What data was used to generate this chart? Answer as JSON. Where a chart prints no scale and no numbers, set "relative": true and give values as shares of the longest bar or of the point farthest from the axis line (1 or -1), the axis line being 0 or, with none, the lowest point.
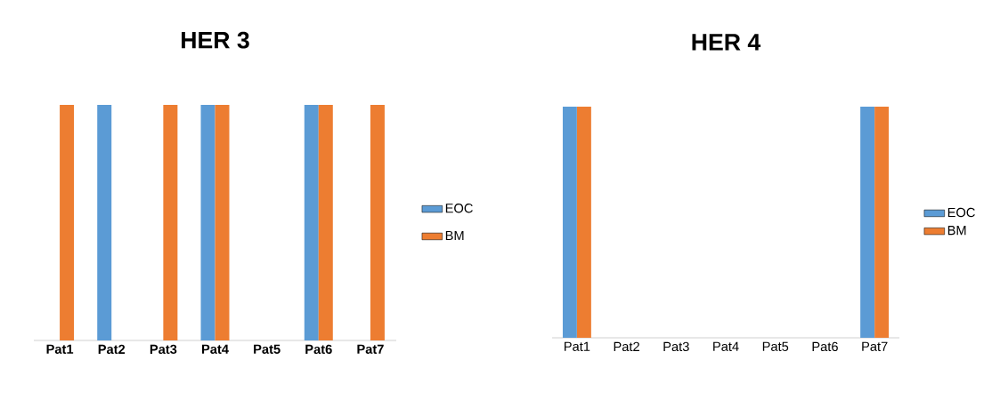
{
  "chart_data": [
    {
      "type": "bar",
      "title": "HER 3",
      "categories": [
        "Pat1",
        "Pat2",
        "Pat3",
        "Pat4",
        "Pat5",
        "Pat6",
        "Pat7"
      ],
      "relative": true,
      "legend": "right",
      "series": [
        {
          "name": "EOC",
          "color": "#5b9bd5",
          "values": [
            0,
            1,
            0,
            1,
            0,
            1,
            0
          ]
        },
        {
          "name": "BM",
          "color": "#ed7d31",
          "values": [
            1,
            0,
            1,
            1,
            0,
            1,
            1
          ]
        }
      ]
    },
    {
      "type": "bar",
      "title": "HER 4",
      "categories": [
        "Pat1",
        "Pat2",
        "Pat3",
        "Pat4",
        "Pat5",
        "Pat6",
        "Pat7"
      ],
      "relative": true,
      "legend": "right",
      "series": [
        {
          "name": "EOC",
          "color": "#5b9bd5",
          "values": [
            1,
            0,
            0,
            0,
            0,
            0,
            1
          ]
        },
        {
          "name": "BM",
          "color": "#ed7d31",
          "values": [
            1,
            0,
            0,
            0,
            0,
            0,
            1
          ]
        }
      ]
    }
  ]
}
